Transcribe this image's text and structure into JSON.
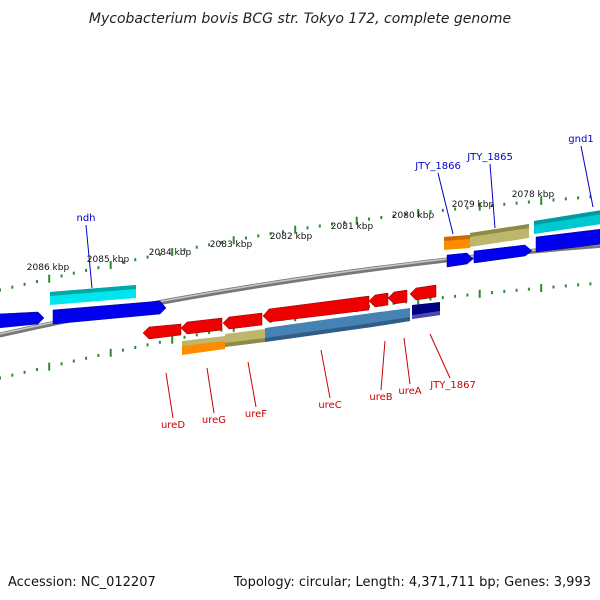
{
  "title": "Mycobacterium bovis BCG str. Tokyo 172, complete genome",
  "footer": {
    "accession": "Accession: NC_012207",
    "stats": "Topology: circular; Length: 4,371,711 bp; Genes: 3,993"
  },
  "colors": {
    "backbone": "#808080",
    "tick": "#2e8b2e",
    "upper_label": "#0000cc",
    "lower_label": "#cc0000"
  },
  "scale_ticks": [
    {
      "label": "2086 kbp",
      "kbp": 2086
    },
    {
      "label": "2085 kbp",
      "kbp": 2085
    },
    {
      "label": "2084 kbp",
      "kbp": 2084
    },
    {
      "label": "2083 kbp",
      "kbp": 2083
    },
    {
      "label": "2082 kbp",
      "kbp": 2082
    },
    {
      "label": "2081 kbp",
      "kbp": 2081
    },
    {
      "label": "2080 kbp",
      "kbp": 2080
    },
    {
      "label": "2079 kbp",
      "kbp": 2079
    },
    {
      "label": "2078 kbp",
      "kbp": 2078
    }
  ],
  "upper_genes": [
    {
      "label": "ndh",
      "color": "#0000cc"
    },
    {
      "label": "JTY_1866",
      "color": "#0000cc"
    },
    {
      "label": "JTY_1865",
      "color": "#0000cc"
    },
    {
      "label": "gnd1",
      "color": "#0000cc"
    }
  ],
  "lower_genes": [
    {
      "label": "ureD",
      "color": "#cc0000"
    },
    {
      "label": "ureG",
      "color": "#cc0000"
    },
    {
      "label": "ureF",
      "color": "#cc0000"
    },
    {
      "label": "ureC",
      "color": "#cc0000"
    },
    {
      "label": "ureB",
      "color": "#cc0000"
    },
    {
      "label": "ureA",
      "color": "#cc0000"
    },
    {
      "label": "JTY_1867",
      "color": "#cc0000"
    }
  ],
  "feature_colors": {
    "cds_forward": "#0000ee",
    "gene_forward": "#00e5ee",
    "gene_forward_dark": "#00a8a8",
    "cds_reverse": "#ee0000",
    "gene_reverse": "#4682b4",
    "gene_reverse_dark": "#000080",
    "misc_khaki": "#bdb76b",
    "misc_orange": "#ff8c00"
  }
}
